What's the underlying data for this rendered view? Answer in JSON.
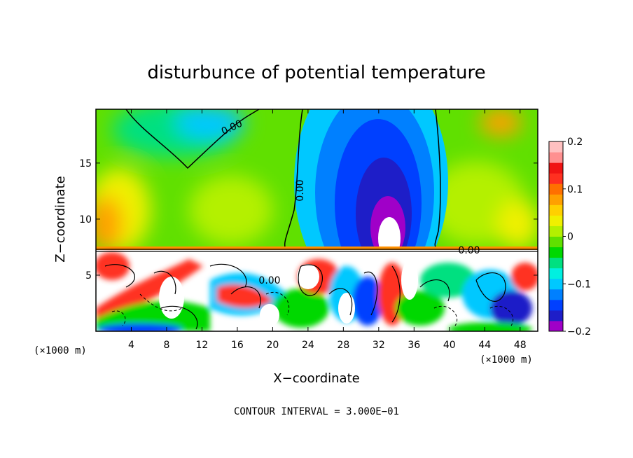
{
  "chart_data": {
    "type": "heatmap",
    "title": "disturbunce of potential temperature",
    "xlabel": "X−coordinate",
    "ylabel": "Z−coordinate",
    "x_unit": "(×1000 m)",
    "x_unit_right": "(×1000 m)",
    "x_ticks": [
      4,
      8,
      12,
      16,
      20,
      24,
      28,
      32,
      36,
      40,
      44,
      48
    ],
    "y_ticks": [
      5,
      10,
      15
    ],
    "xlim": [
      0,
      50
    ],
    "ylim": [
      0,
      19.8
    ],
    "colorbar": {
      "range": [
        -0.2,
        0.2
      ],
      "tick_values": [
        0.2,
        0.1,
        0,
        -0.1,
        -0.2
      ],
      "tick_labels": [
        "0.2",
        "0.1",
        "0",
        "−0.1",
        "−0.2"
      ],
      "colors": [
        "#a000c8",
        "#1e1ec8",
        "#0040ff",
        "#0080ff",
        "#00c8ff",
        "#00f0e0",
        "#00e080",
        "#00d800",
        "#60e000",
        "#b4f000",
        "#f0f000",
        "#ffd000",
        "#ffa000",
        "#ff7000",
        "#ff3020",
        "#f01414",
        "#ff9090",
        "#ffc0c0"
      ]
    },
    "contour_labels": [
      "0.00",
      "0.00",
      "0.00",
      "0.00"
    ],
    "footer": "CONTOUR INTERVAL = 3.000E−01"
  }
}
